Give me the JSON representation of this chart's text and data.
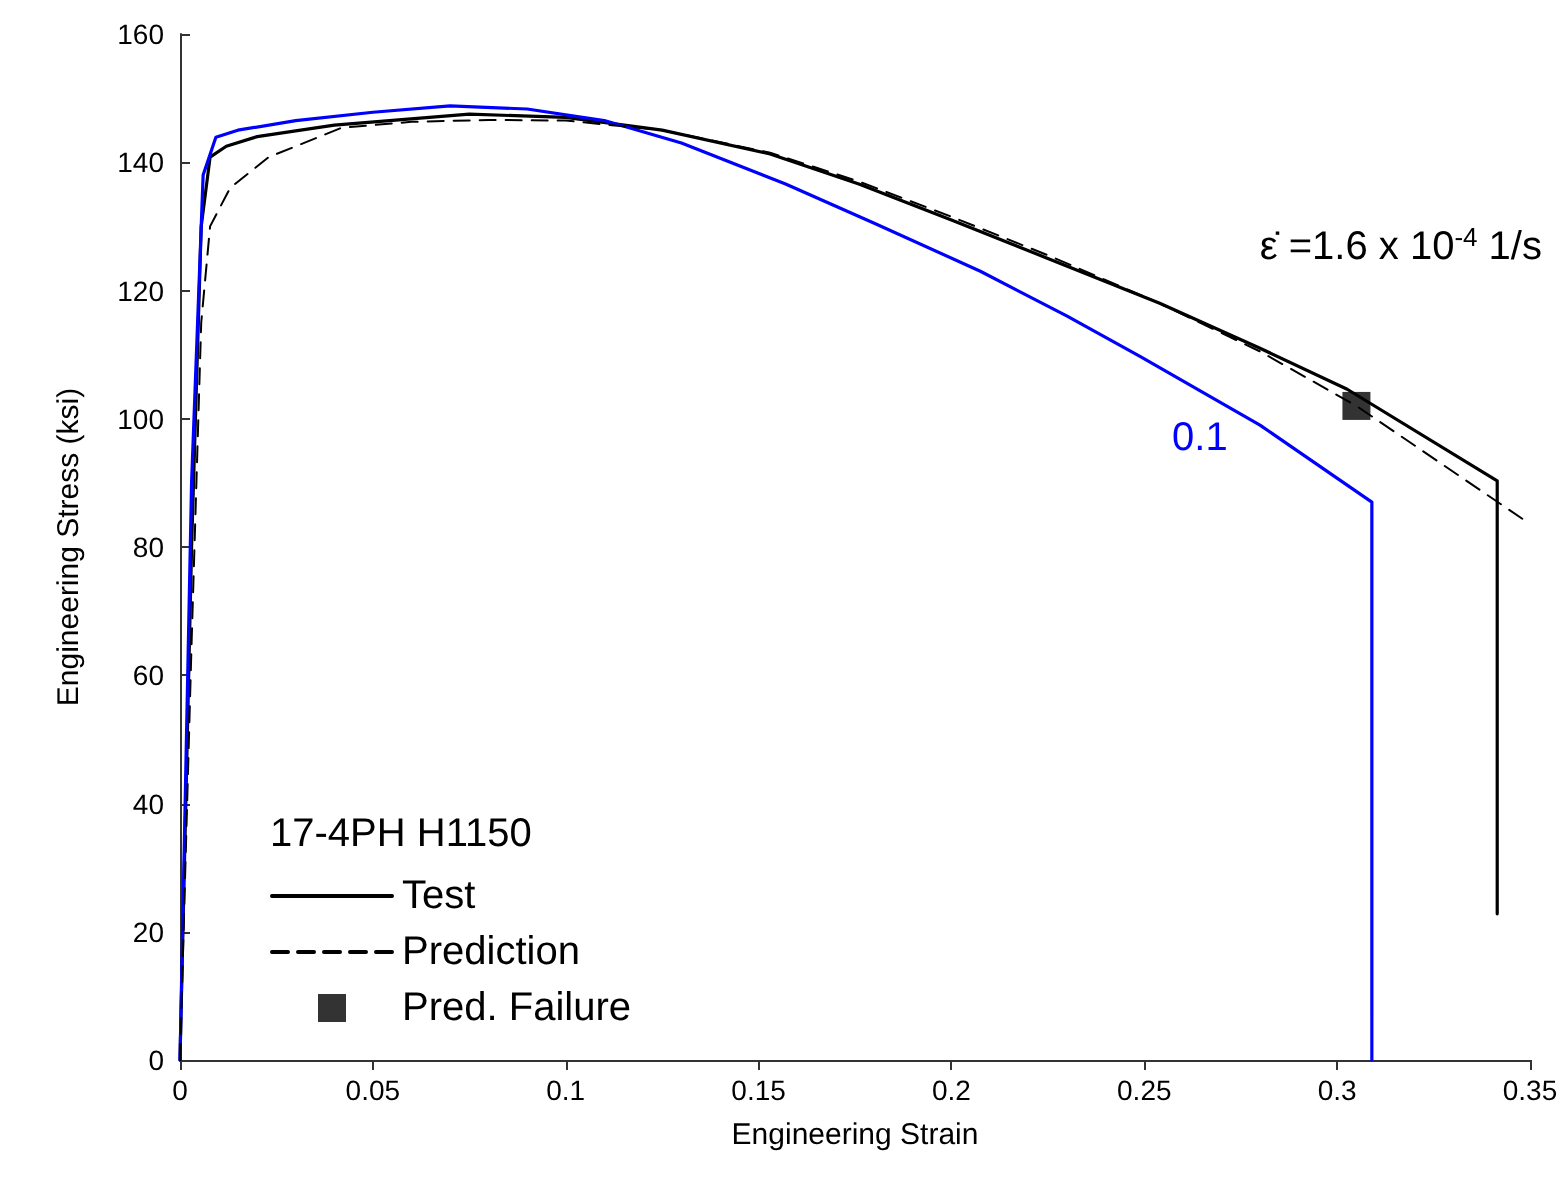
{
  "chart_data": {
    "type": "line",
    "xlabel": "Engineering Strain",
    "ylabel": "Engineering Stress (ksi)",
    "legend_title": "17-4PH H1150",
    "legend": "bottom left",
    "grid": false,
    "marker": "none",
    "xlim": [
      0,
      0.35
    ],
    "xticks": [
      0,
      0.05,
      0.1,
      0.15,
      0.2,
      0.25,
      0.3,
      0.35
    ],
    "ylim": [
      0,
      160
    ],
    "yticks": [
      0,
      20,
      40,
      60,
      80,
      100,
      120,
      140,
      160
    ],
    "annotations": [
      "ε̇ =1.6 x 10$^{-4}$ 1/s",
      "0.1"
    ],
    "series": [
      {
        "name": "Test",
        "color": "#000000",
        "line_style": "solid",
        "x": [
          0,
          0.003,
          0.0055,
          0.0078,
          0.012,
          0.02,
          0.04,
          0.075,
          0.1,
          0.125,
          0.153,
          0.176,
          0.2,
          0.225,
          0.254,
          0.28,
          0.3026,
          0.3415,
          0.3415
        ],
        "values": [
          0,
          80,
          130,
          140.8,
          142.5,
          144,
          145.8,
          147.5,
          147,
          145,
          141.3,
          136.6,
          131,
          125,
          118,
          111,
          104.6,
          90.3,
          22.8
        ]
      },
      {
        "color": "#0000ff",
        "line_style": "solid",
        "x": [
          0,
          0.003,
          0.006,
          0.0093,
          0.015,
          0.03,
          0.05,
          0.07,
          0.09,
          0.11,
          0.13,
          0.157,
          0.18,
          0.2075,
          0.23,
          0.249,
          0.28,
          0.309,
          0.309
        ],
        "values": [
          0,
          90,
          138,
          143.9,
          145,
          146.5,
          147.8,
          148.8,
          148.3,
          146.5,
          143,
          136.6,
          130.5,
          123,
          116,
          109.7,
          99,
          87,
          0
        ]
      },
      {
        "name": "Prediction",
        "color": "#000000",
        "line_style": "dashed",
        "x": [
          0,
          0.003,
          0.0055,
          0.0078,
          0.013,
          0.023,
          0.042,
          0.06,
          0.08,
          0.1,
          0.125,
          0.153,
          0.176,
          0.2,
          0.225,
          0.254,
          0.28,
          0.305,
          0.348
        ],
        "values": [
          0,
          65,
          115,
          130,
          136,
          140.8,
          145.4,
          146.3,
          146.6,
          146.5,
          145,
          141.5,
          137,
          131.5,
          125.5,
          118,
          110.5,
          102,
          84.4
        ]
      },
      {
        "name": "Pred. Failure",
        "type": "scatter",
        "marker": "square",
        "color": "#000000",
        "x": [
          0.305
        ],
        "values": [
          102
        ]
      }
    ]
  }
}
